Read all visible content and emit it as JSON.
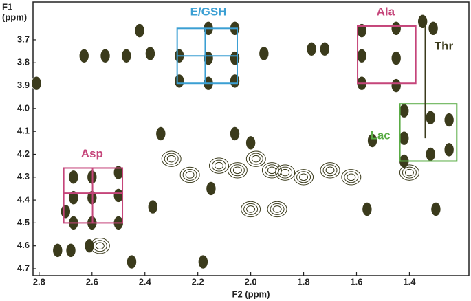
{
  "chart_data": {
    "type": "contour",
    "xlabel": "F2 (ppm)",
    "ylabel_lines": [
      "F1",
      "(ppm)"
    ],
    "xlim": [
      2.823,
      1.175
    ],
    "ylim": [
      3.535,
      4.73
    ],
    "xticks": [
      2.8,
      2.6,
      2.4,
      2.2,
      {
        "value": 2,
        "label": "2.0"
      },
      1.8,
      1.6,
      1.4
    ],
    "yticks": [
      3.7,
      3.8,
      3.9,
      {
        "value": 4,
        "label": "4.0"
      },
      4.1,
      4.2,
      4.3,
      4.4,
      4.5,
      4.6,
      4.7
    ],
    "color": "#3b3b1c",
    "peaks": {
      "x": [
        2.16,
        2.06,
        2.27,
        2.16,
        2.06,
        2.27,
        2.16,
        2.06,
        2.63,
        2.55,
        2.47,
        2.38,
        1.95,
        1.77,
        1.72,
        2.42,
        1.58,
        1.45,
        1.35,
        1.58,
        1.45,
        1.58,
        1.45,
        1.31,
        1.42,
        1.42,
        1.42,
        1.32,
        1.32,
        1.25,
        1.25,
        2.34,
        2.06,
        2.0,
        1.54,
        2.67,
        2.67,
        2.67,
        2.6,
        2.6,
        2.6,
        2.5,
        2.5,
        2.5,
        2.37,
        2.15,
        2.73,
        2.68,
        2.61,
        2.7,
        1.56,
        1.3,
        2.18,
        2.45,
        2.81
      ],
      "y": [
        3.65,
        3.65,
        3.77,
        3.78,
        3.78,
        3.88,
        3.89,
        3.88,
        3.77,
        3.77,
        3.77,
        3.76,
        3.76,
        3.74,
        3.74,
        3.66,
        3.66,
        3.65,
        3.62,
        3.77,
        3.78,
        3.89,
        3.9,
        3.65,
        4.01,
        4.13,
        4.23,
        4.04,
        4.2,
        4.05,
        4.18,
        4.11,
        4.11,
        4.15,
        4.14,
        4.3,
        4.39,
        4.5,
        4.3,
        4.39,
        4.5,
        4.28,
        4.38,
        4.5,
        4.43,
        4.35,
        4.62,
        4.62,
        4.6,
        4.45,
        4.44,
        4.44,
        4.67,
        4.67,
        3.89
      ]
    },
    "weak_peaks": {
      "x": [
        2.23,
        2.05,
        1.87,
        1.92,
        1.62,
        1.4,
        2.12,
        1.98,
        1.8,
        1.7,
        2.3,
        2.57,
        2.0,
        1.9
      ],
      "y": [
        4.29,
        4.27,
        4.28,
        4.27,
        4.3,
        4.28,
        4.25,
        4.22,
        4.3,
        4.27,
        4.22,
        4.6,
        4.44,
        4.44
      ]
    },
    "annotations": [
      {
        "text": "E/GSH",
        "color": "#3b9fd3",
        "x": 2.16,
        "y": 3.58,
        "box_x": [
          2.278,
          2.051
        ],
        "box_y": [
          3.65,
          3.89
        ],
        "div_x": [
          2.172
        ],
        "div_y": [
          3.77
        ]
      },
      {
        "text": "Ala",
        "color": "#c5457a",
        "x": 1.49,
        "y": 3.58,
        "box_x": [
          1.596,
          1.376
        ],
        "box_y": [
          3.64,
          3.89
        ],
        "div_x": [],
        "div_y": []
      },
      {
        "text": "Lac",
        "color": "#5aac45",
        "x": 1.51,
        "y": 4.12,
        "box_x": [
          1.436,
          1.221
        ],
        "box_y": [
          3.98,
          4.23
        ],
        "div_x": [],
        "div_y": []
      },
      {
        "text": "Asp",
        "color": "#c5457a",
        "x": 2.6,
        "y": 4.2,
        "box_x": [
          2.707,
          2.485
        ],
        "box_y": [
          4.26,
          4.5
        ],
        "div_x": [
          2.598
        ],
        "div_y": [
          4.37
        ]
      },
      {
        "text": "Thr",
        "color": "#3b3b1c",
        "x": 1.27,
        "y": 3.73,
        "box_x": [
          1.34,
          1.34
        ],
        "box_y": [
          3.62,
          4.13
        ],
        "div_x": [],
        "div_y": []
      }
    ]
  }
}
